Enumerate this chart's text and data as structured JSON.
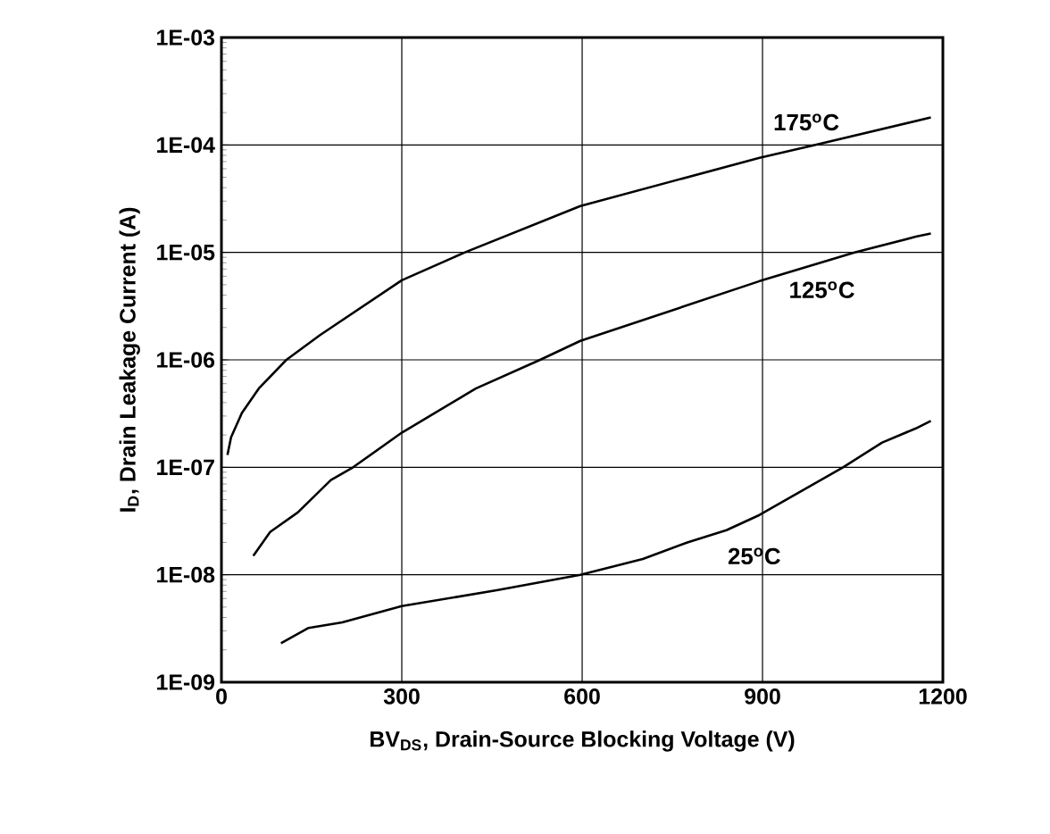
{
  "chart_data": {
    "type": "line",
    "xlabel": "BV$_{DS}$, Drain-Source Blocking Voltage (V)",
    "ylabel": "I$_{D}$, Drain Leakage Current (A)",
    "log": "y",
    "grid": true,
    "marker": "none",
    "line_style": "solid",
    "xlim": [
      0,
      1200
    ],
    "xticks": [
      0,
      300,
      600,
      900,
      1200
    ],
    "ylim": [
      1e-09,
      0.001
    ],
    "yticks": [
      {
        "value": 1e-09,
        "label": "1E-09"
      },
      {
        "value": 1e-08,
        "label": "1E-08"
      },
      {
        "value": 1e-07,
        "label": "1E-07"
      },
      {
        "value": 1e-06,
        "label": "1E-06"
      },
      {
        "value": 1e-05,
        "label": "1E-05"
      },
      {
        "value": 0.0001,
        "label": "1E-04"
      },
      {
        "value": 0.001,
        "label": "1E-03"
      }
    ],
    "series": [
      {
        "name": "175$^{o}$C",
        "color": "#000000",
        "x": [
          10,
          16,
          34,
          62,
          108,
          164,
          300,
          405,
          597,
          895,
          988,
          1180
        ],
        "values": [
          1.3e-07,
          1.9e-07,
          3.2e-07,
          5.4e-07,
          1e-06,
          1.7e-06,
          5.5e-06,
          1e-05,
          2.7e-05,
          7.6e-05,
          0.0001,
          0.00018
        ]
      },
      {
        "name": "125$^{o}$C",
        "color": "#000000",
        "x": [
          53,
          81,
          127,
          182,
          219,
          300,
          423,
          530,
          597,
          895,
          1053,
          1155,
          1180
        ],
        "values": [
          1.5e-08,
          2.5e-08,
          3.8e-08,
          7.6e-08,
          1e-07,
          2.1e-07,
          5.4e-07,
          1e-06,
          1.5e-06,
          5.4e-06,
          1e-05,
          1.4e-05,
          1.5e-05
        ]
      },
      {
        "name": "25$^{o}$C",
        "color": "#000000",
        "x": [
          99,
          145,
          201,
          300,
          460,
          597,
          701,
          775,
          840,
          895,
          1034,
          1099,
          1155,
          1180
        ],
        "values": [
          2.3e-09,
          3.2e-09,
          3.6e-09,
          5.1e-09,
          7.2e-09,
          1e-08,
          1.4e-08,
          2e-08,
          2.6e-08,
          3.6e-08,
          1e-07,
          1.7e-07,
          2.3e-07,
          2.7e-07
        ]
      }
    ]
  }
}
